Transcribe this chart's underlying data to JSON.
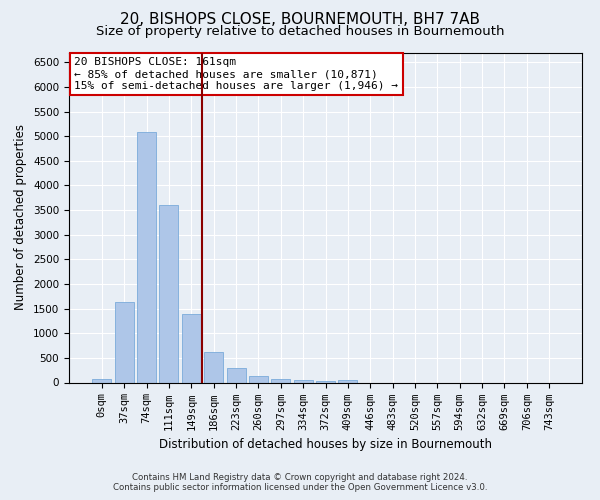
{
  "title": "20, BISHOPS CLOSE, BOURNEMOUTH, BH7 7AB",
  "subtitle": "Size of property relative to detached houses in Bournemouth",
  "xlabel": "Distribution of detached houses by size in Bournemouth",
  "ylabel": "Number of detached properties",
  "footer_line1": "Contains HM Land Registry data © Crown copyright and database right 2024.",
  "footer_line2": "Contains public sector information licensed under the Open Government Licence v3.0.",
  "bar_labels": [
    "0sqm",
    "37sqm",
    "74sqm",
    "111sqm",
    "149sqm",
    "186sqm",
    "223sqm",
    "260sqm",
    "297sqm",
    "334sqm",
    "372sqm",
    "409sqm",
    "446sqm",
    "483sqm",
    "520sqm",
    "557sqm",
    "594sqm",
    "632sqm",
    "669sqm",
    "706sqm",
    "743sqm"
  ],
  "bar_values": [
    70,
    1640,
    5080,
    3600,
    1400,
    610,
    300,
    140,
    80,
    50,
    40,
    50,
    0,
    0,
    0,
    0,
    0,
    0,
    0,
    0,
    0
  ],
  "bar_color": "#aec6e8",
  "bar_edge_color": "#7aabda",
  "vline_x": 4.5,
  "vline_color": "#8b0000",
  "ylim": [
    0,
    6700
  ],
  "yticks": [
    0,
    500,
    1000,
    1500,
    2000,
    2500,
    3000,
    3500,
    4000,
    4500,
    5000,
    5500,
    6000,
    6500
  ],
  "annotation_title": "20 BISHOPS CLOSE: 161sqm",
  "annotation_line1": "← 85% of detached houses are smaller (10,871)",
  "annotation_line2": "15% of semi-detached houses are larger (1,946) →",
  "annotation_box_color": "white",
  "annotation_box_edge_color": "#cc0000",
  "bg_color": "#e8eef5",
  "plot_bg_color": "#e8eef5",
  "grid_color": "white",
  "title_fontsize": 11,
  "subtitle_fontsize": 9.5,
  "axis_label_fontsize": 8.5,
  "tick_fontsize": 7.5,
  "annotation_fontsize": 8
}
